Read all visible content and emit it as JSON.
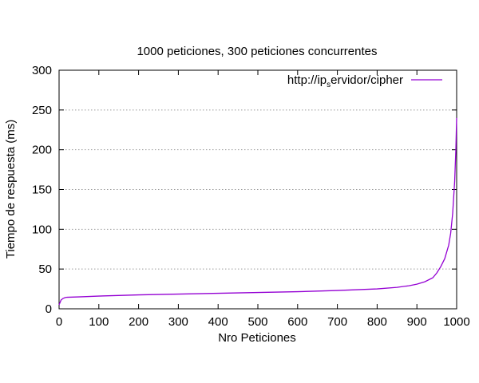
{
  "chart_data": {
    "type": "line",
    "title": "1000 peticiones, 300 peticiones concurrentes",
    "xlabel": "Nro Peticiones",
    "ylabel": "Tiempo de respuesta (ms)",
    "xlim": [
      0,
      1000
    ],
    "ylim": [
      0,
      300
    ],
    "xticks": [
      "0",
      "100",
      "200",
      "300",
      "400",
      "500",
      "600",
      "700",
      "800",
      "900",
      "1000"
    ],
    "yticks": [
      "0",
      "50",
      "100",
      "150",
      "200",
      "250",
      "300"
    ],
    "grid": "horizontal-dotted",
    "legend_position": "top-right",
    "series": [
      {
        "name_prefix": "http://ip",
        "name_subscript": "s",
        "name_suffix": "ervidor/cipher",
        "color": "#9400d3",
        "x": [
          0,
          5,
          10,
          15,
          20,
          50,
          100,
          200,
          300,
          400,
          500,
          600,
          700,
          800,
          850,
          880,
          900,
          920,
          940,
          950,
          960,
          970,
          980,
          985,
          990,
          995,
          998,
          1000
        ],
        "y": [
          5,
          11,
          13,
          14,
          14.5,
          15,
          16,
          17.5,
          18.5,
          19.5,
          20.5,
          21.5,
          23,
          25,
          27,
          29,
          31,
          34,
          39,
          45,
          53,
          63,
          80,
          95,
          120,
          160,
          200,
          240
        ]
      }
    ]
  }
}
